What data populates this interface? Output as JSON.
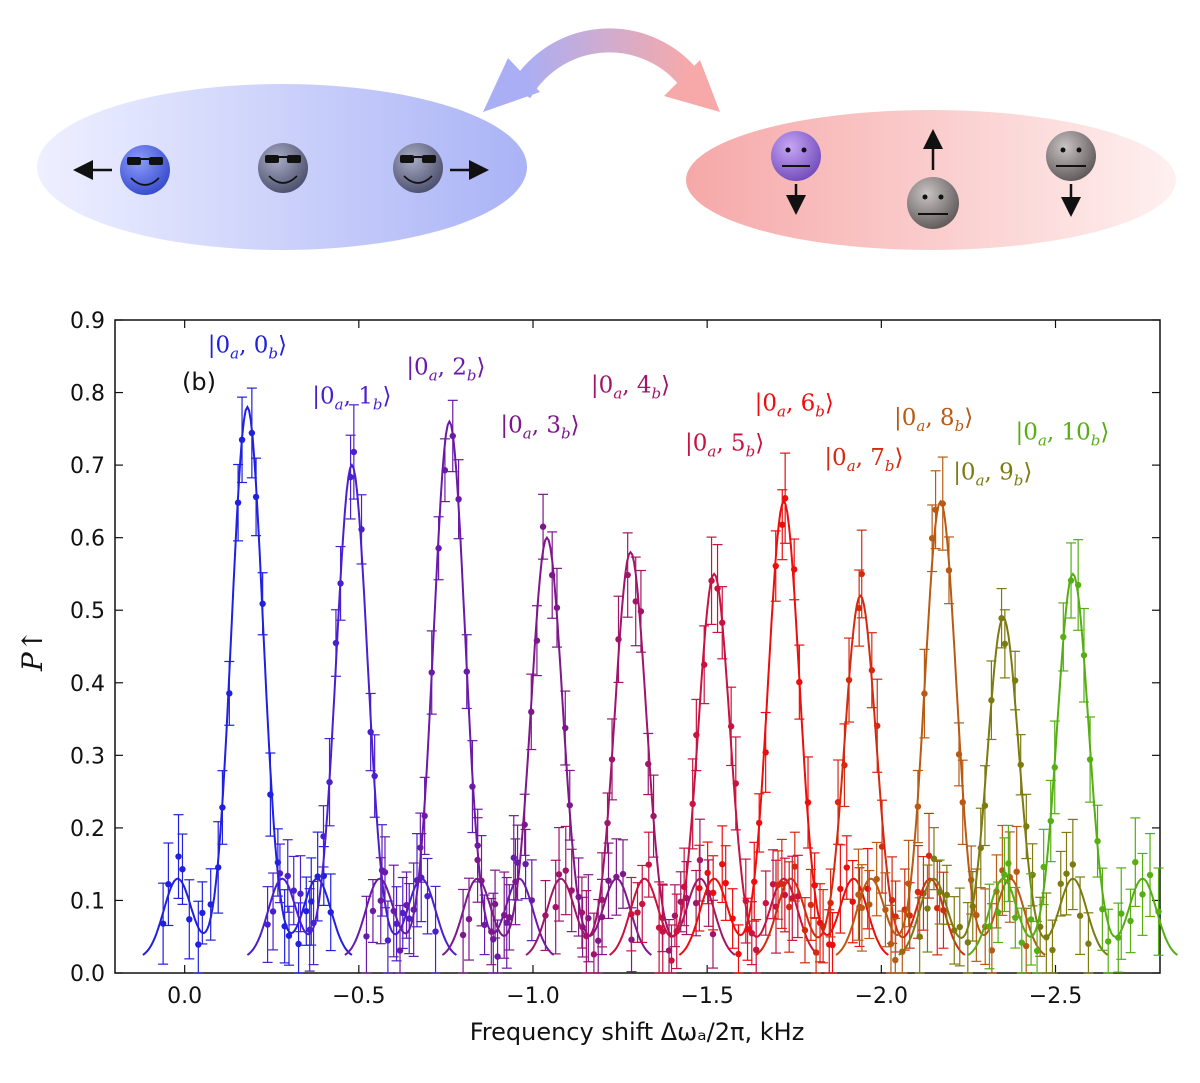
{
  "chart_data": {
    "type": "scatter",
    "panel_label": "(b)",
    "xlabel": "Frequency shift Δωₐ/2π, kHz",
    "ylabel": "P↑",
    "xlim": [
      0.2,
      -2.8
    ],
    "ylim": [
      0.0,
      0.9
    ],
    "xticks": [
      0.0,
      -0.5,
      -1.0,
      -1.5,
      -2.0,
      -2.5
    ],
    "xtick_labels": [
      "0.0",
      "−0.5",
      "−1.0",
      "−1.5",
      "−2.0",
      "−2.5"
    ],
    "yticks": [
      0.0,
      0.1,
      0.2,
      0.3,
      0.4,
      0.5,
      0.6,
      0.7,
      0.8,
      0.9
    ],
    "ytick_labels": [
      "0.0",
      "0.1",
      "0.2",
      "0.3",
      "0.4",
      "0.5",
      "0.6",
      "0.7",
      "0.8",
      "0.9"
    ],
    "series": [
      {
        "name": "|0a,0b⟩",
        "label_main": "|0",
        "label_a": "a",
        "label_n": "0",
        "color": "#2020e0",
        "center": -0.18,
        "peak": 0.76,
        "width": 0.045,
        "label_pos": [
          -0.18,
          0.855
        ]
      },
      {
        "name": "|0a,1b⟩",
        "label_main": "|0",
        "label_a": "a",
        "label_n": "1",
        "color": "#4a1fd0",
        "center": -0.48,
        "peak": 0.68,
        "width": 0.045,
        "label_pos": [
          -0.48,
          0.785
        ]
      },
      {
        "name": "|0a,2b⟩",
        "label_main": "|0",
        "label_a": "a",
        "label_n": "2",
        "color": "#6a1aa8",
        "center": -0.76,
        "peak": 0.74,
        "width": 0.045,
        "label_pos": [
          -0.75,
          0.825
        ]
      },
      {
        "name": "|0a,3b⟩",
        "label_main": "|0",
        "label_a": "a",
        "label_n": "3",
        "color": "#7d178a",
        "center": -1.04,
        "peak": 0.58,
        "width": 0.045,
        "label_pos": [
          -1.02,
          0.745
        ]
      },
      {
        "name": "|0a,4b⟩",
        "label_main": "|0",
        "label_a": "a",
        "label_n": "4",
        "color": "#a0156a",
        "center": -1.28,
        "peak": 0.56,
        "width": 0.045,
        "label_pos": [
          -1.28,
          0.8
        ]
      },
      {
        "name": "|0a,5b⟩",
        "label_main": "|0",
        "label_a": "a",
        "label_n": "5",
        "color": "#c81240",
        "center": -1.52,
        "peak": 0.53,
        "width": 0.045,
        "label_pos": [
          -1.55,
          0.72
        ]
      },
      {
        "name": "|0a,6b⟩",
        "label_main": "|0",
        "label_a": "a",
        "label_n": "6",
        "color": "#ee0c0c",
        "center": -1.72,
        "peak": 0.63,
        "width": 0.045,
        "label_pos": [
          -1.75,
          0.775
        ]
      },
      {
        "name": "|0a,7b⟩",
        "label_main": "|0",
        "label_a": "a",
        "label_n": "7",
        "color": "#d42a10",
        "center": -1.94,
        "peak": 0.5,
        "width": 0.045,
        "label_pos": [
          -1.95,
          0.7
        ]
      },
      {
        "name": "|0a,8b⟩",
        "label_main": "|0",
        "label_a": "a",
        "label_n": "8",
        "color": "#b85a14",
        "center": -2.17,
        "peak": 0.63,
        "width": 0.045,
        "label_pos": [
          -2.15,
          0.755
        ]
      },
      {
        "name": "|0a,9b⟩",
        "label_main": "|0",
        "label_a": "a",
        "label_n": "9",
        "color": "#7d7a10",
        "center": -2.35,
        "peak": 0.47,
        "width": 0.045,
        "label_pos": [
          -2.32,
          0.68
        ]
      },
      {
        "name": "|0a,10b⟩",
        "label_main": "|0",
        "label_a": "a",
        "label_n": "10",
        "color": "#55ae12",
        "center": -2.55,
        "peak": 0.53,
        "width": 0.045,
        "label_pos": [
          -2.52,
          0.735
        ]
      }
    ]
  },
  "illustration": {
    "left_group": [
      "blue-sunglasses-smiley",
      "gray-sunglasses-smiley",
      "gray-sunglasses-smiley"
    ],
    "right_group": [
      "purple-neutral-face",
      "gray-neutral-face",
      "gray-neutral-face"
    ],
    "left_color": "#aab0f5",
    "right_color": "#f7b9b9"
  }
}
